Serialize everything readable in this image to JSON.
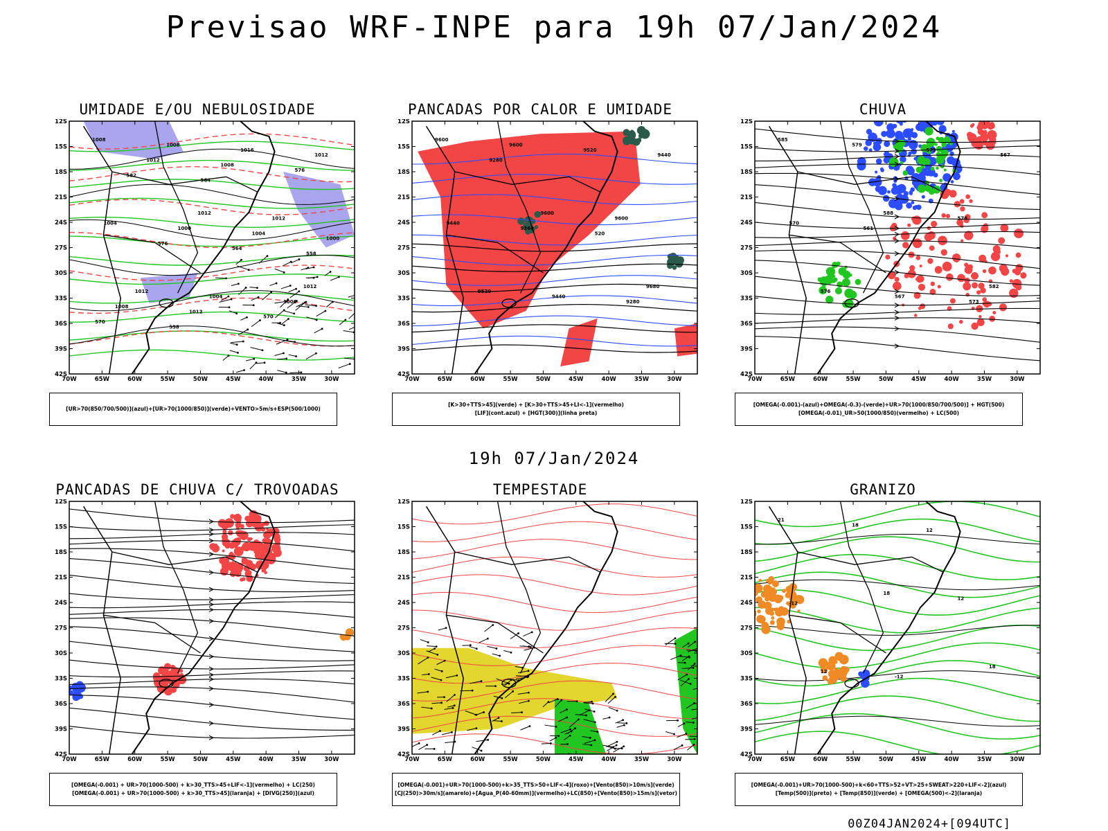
{
  "header": {
    "title": "Previsao WRF-INPE  para 19h 07/Jan/2024"
  },
  "middle": {
    "title": "19h 07/Jan/2024"
  },
  "footer": {
    "text": "00Z04JAN2024+[094UTC]"
  },
  "colors": {
    "red": "#f24545",
    "green": "#21c621",
    "blue": "#2c4dff",
    "lavender": "#aaa6ee",
    "darkgreen": "#2c5a4a",
    "yellow": "#e3d62e",
    "orange": "#f08a24",
    "black": "#000000"
  },
  "panels": [
    {
      "id": "p1",
      "title": "UMIDADE E/OU NEBULOSIDADE",
      "legend": [
        "[UR>70(850/700/500)](azul)+[UR>70(1000/850)](verde)+VENTO>5m/s+ESP(500/1000)"
      ],
      "labels": [
        "1008",
        "1012",
        "1012",
        "1008",
        "1012",
        "1012",
        "1016",
        "1004",
        "1004",
        "1012",
        "1000",
        "1008",
        "1012",
        "1004",
        "1008",
        "1008",
        "1000",
        "1012",
        "576",
        "576",
        "570",
        "582",
        "564",
        "570",
        "564",
        "558",
        "558"
      ]
    },
    {
      "id": "p2",
      "title": "PANCADAS POR CALOR E UMIDADE",
      "legend": [
        "[K>30+TTS>45](verde) + [K>30+TTS>45+LI<-1](vermelho)",
        "[LIF](cont.azul) + [HGT(300)](linha preta)"
      ],
      "labels": [
        "9600",
        "9600",
        "9680",
        "9600",
        "9600",
        "9520",
        "9520",
        "9440",
        "9440",
        "9440",
        "9360",
        "9280",
        "9280",
        "520"
      ]
    },
    {
      "id": "p3",
      "title": "CHUVA",
      "legend": [
        "[OMEGA(-0.001)-(azul)+OMEGA(-0.3)-(verde)+UR>70(1000/850/700/500)] + HGT(500)",
        "[OMEGA(-0.01)_UR>50(1000/850)(vermelho) + LC(500)"
      ],
      "labels": [
        "585",
        "588",
        "582",
        "579",
        "576",
        "576",
        "573",
        "570",
        "567",
        "567",
        "561",
        "573"
      ]
    },
    {
      "id": "p4",
      "title": "PANCADAS DE CHUVA C/ TROVOADAS",
      "legend": [
        "[OMEGA(-0.001) + UR>70(1000-500) + k>30_TTS>45+LIF<-1](vermelho) + LC(250)",
        "[OMEGA(-0.001) + UR>70(1000-500) + k>30_TTS>45](laranja) + [DIVG(250)](azul)"
      ],
      "labels": []
    },
    {
      "id": "p5",
      "title": "TEMPESTADE",
      "legend": [
        "[OMEGA(-0.001)+UR>70(1000-500)+k>35_TTS>50+LIF<-4](roxo)+[Vento(850)>10m/s](verde)",
        "[CJ(250)>30m/s](amarelo)+[Agua_P(40-60mm)](vermelho)+LC(850)+[Vento(850)>15m/s](vetor)"
      ],
      "labels": []
    },
    {
      "id": "p6",
      "title": "GRANIZO",
      "legend": [
        "[OMEGA(-0.001)+UR>70(1000-500)+k<60+TTS>52+VT>25+SWEAT>220+LIF<-2](azul)",
        "[Temp(500)](preto) + [Temp(850)](verde) + [OMEGA(500)<-2](laranja)"
      ],
      "labels": [
        "21",
        "18",
        "18",
        "18",
        "12",
        "12",
        "12",
        "-12",
        "-12"
      ]
    }
  ],
  "axes": {
    "y_ticks": [
      "12S",
      "15S",
      "18S",
      "21S",
      "24S",
      "27S",
      "30S",
      "33S",
      "36S",
      "39S",
      "42S"
    ],
    "x_ticks": [
      "70W",
      "65W",
      "60W",
      "55W",
      "50W",
      "45W",
      "40W",
      "35W",
      "30W"
    ]
  }
}
